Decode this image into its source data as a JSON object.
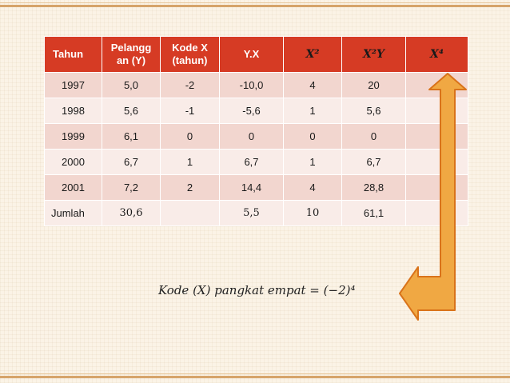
{
  "table": {
    "headers": [
      "Tahun",
      "Pelangg an (Y)",
      "Kode X (tahun)",
      "Y.X",
      "X²",
      "X²Y",
      "X⁴"
    ],
    "rows": [
      [
        "1997",
        "5,0",
        "-2",
        "-10,0",
        "4",
        "20",
        ""
      ],
      [
        "1998",
        "5,6",
        "-1",
        "-5,6",
        "1",
        "5,6",
        ""
      ],
      [
        "1999",
        "6,1",
        "0",
        "0",
        "0",
        "0",
        ""
      ],
      [
        "2000",
        "6,7",
        "1",
        "6,7",
        "1",
        "6,7",
        ""
      ],
      [
        "2001",
        "7,2",
        "2",
        "14,4",
        "4",
        "28,8",
        ""
      ],
      [
        "Jumlah",
        "30,6",
        "",
        "5,5",
        "10",
        "61,1",
        ""
      ]
    ]
  },
  "formula": "Kode (X) pangkat empat = (−2)⁴",
  "colors": {
    "header_bg": "#d63b24",
    "row_odd": "#f2d6cf",
    "row_even": "#f9ece8",
    "arrow_fill": "#f0a843",
    "arrow_stroke": "#d9731a"
  }
}
